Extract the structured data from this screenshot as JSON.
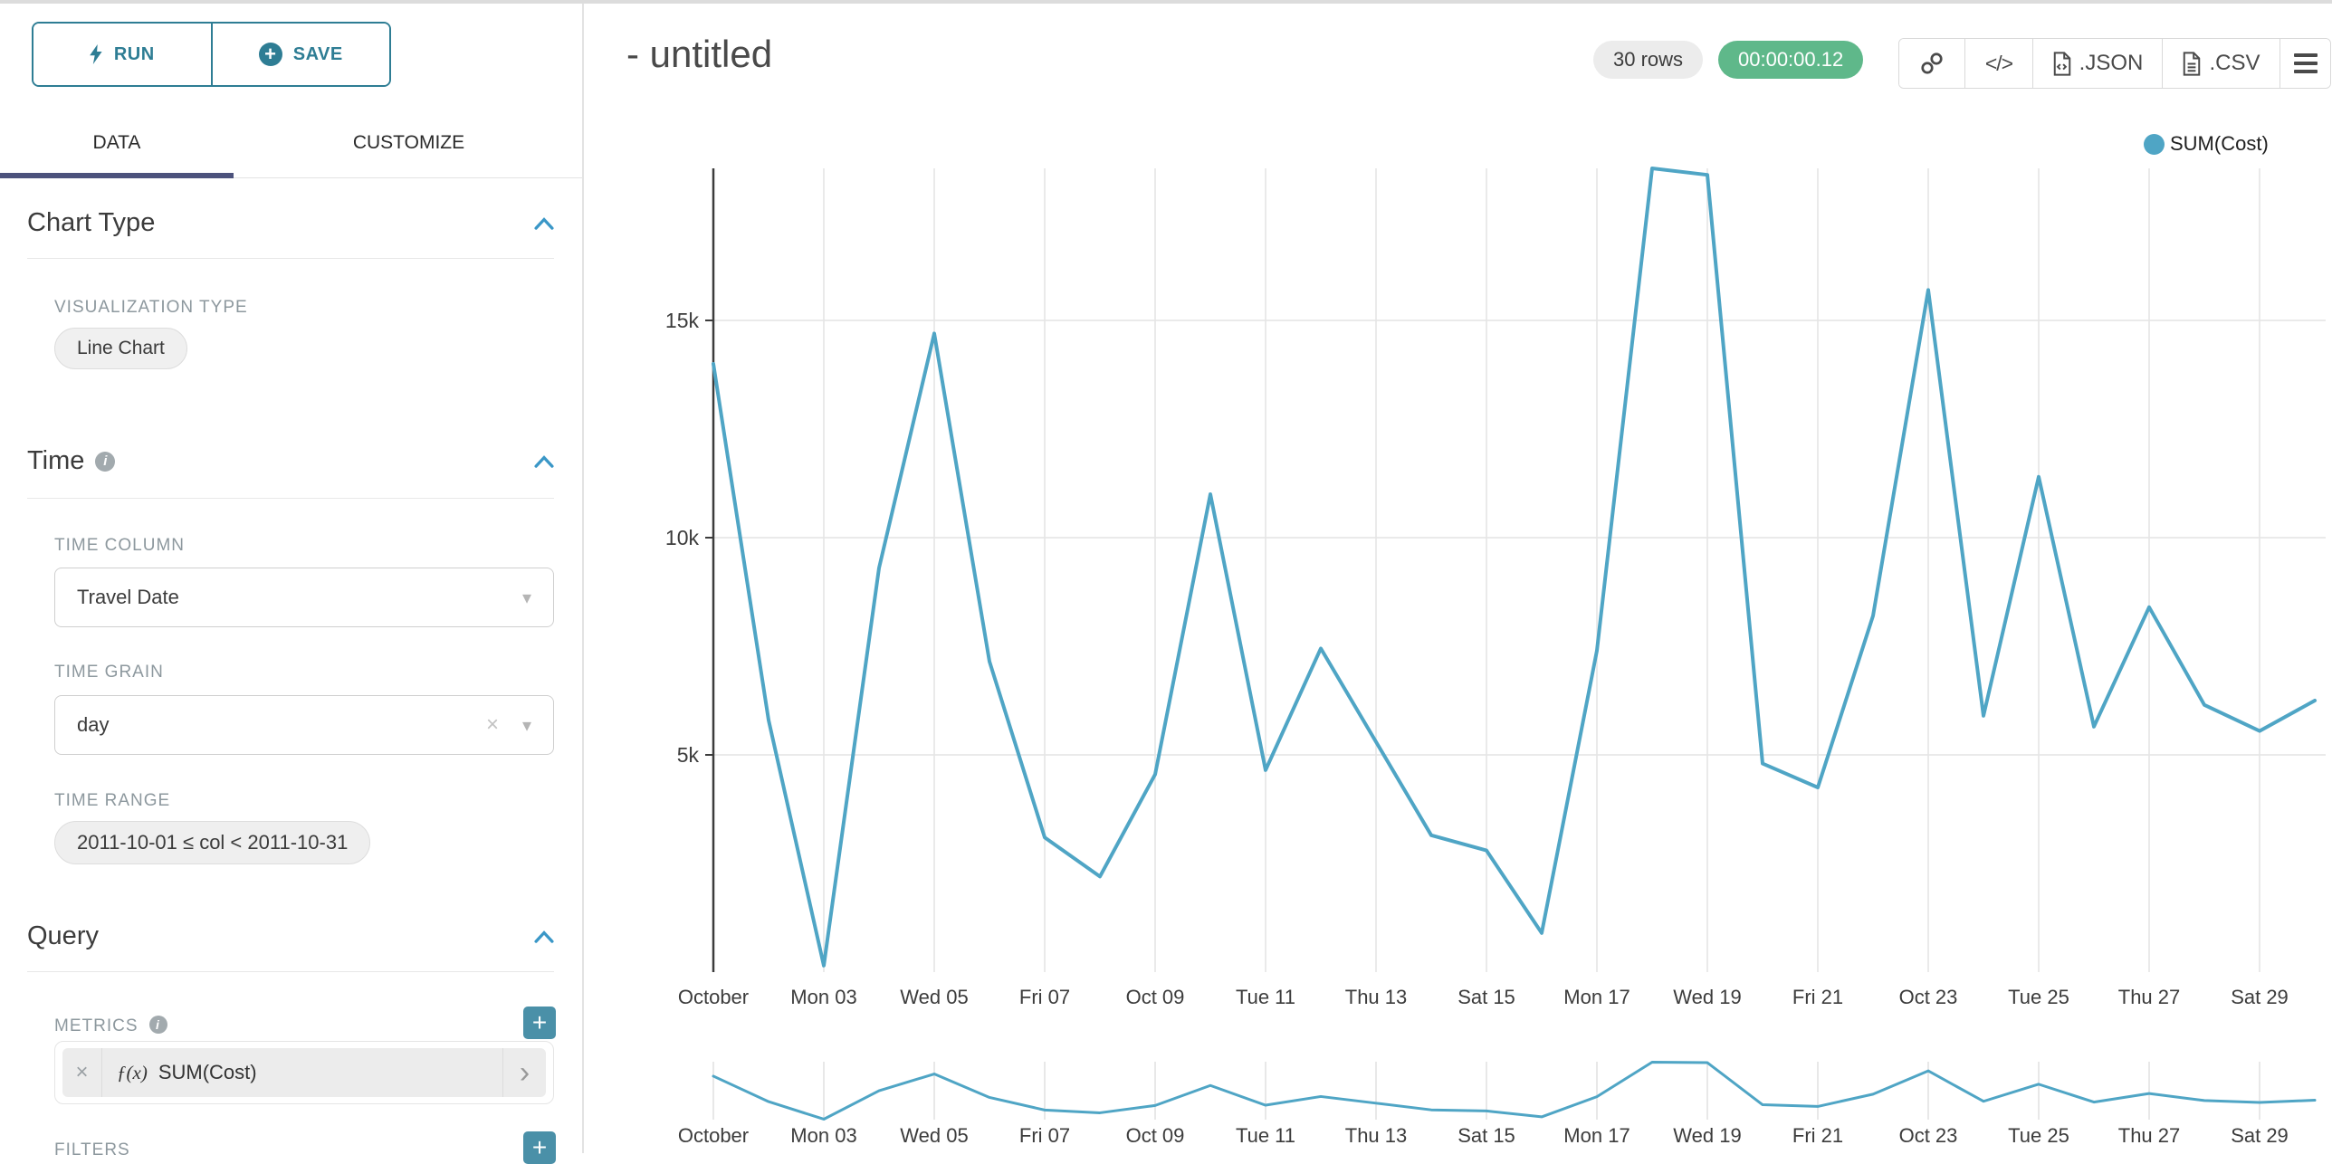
{
  "colors": {
    "accent": "#2e7d94",
    "line": "#4fa5c5",
    "tab_underline": "#4c527c",
    "timer_green": "#5fb88a",
    "add_button": "#4a90a8",
    "grid": "#e4e4e4",
    "axis": "#3c3c3c"
  },
  "icons": {
    "info": "i",
    "plus": "+",
    "clear": "×",
    "caret_down": "▾",
    "chevron_right": "›",
    "code": "</>"
  },
  "sidebar": {
    "run_label": "RUN",
    "save_label": "SAVE",
    "tab_data": "DATA",
    "tab_customize": "CUSTOMIZE",
    "chart_type": {
      "title": "Chart Type",
      "viz_label": "VISUALIZATION TYPE",
      "viz_value": "Line Chart"
    },
    "time": {
      "title": "Time",
      "col_label": "TIME COLUMN",
      "col_value": "Travel Date",
      "grain_label": "TIME GRAIN",
      "grain_value": "day",
      "range_label": "TIME RANGE",
      "range_value": "2011-10-01 ≤ col < 2011-10-31"
    },
    "query": {
      "title": "Query",
      "metrics_label": "METRICS",
      "metric_fx": "ƒ(x)",
      "metric_value": "SUM(Cost)",
      "filters_label": "FILTERS"
    }
  },
  "header": {
    "title": "- untitled",
    "rows_badge": "30 rows",
    "timer_badge": "00:00:00.12",
    "json_label": ".JSON",
    "csv_label": ".CSV"
  },
  "legend": {
    "label": "SUM(Cost)"
  },
  "chart_data": {
    "type": "line",
    "title": "- untitled",
    "legend_position": "top-right",
    "grid": true,
    "focus_chart": true,
    "line_color": "#4fa5c5",
    "xlabel": "",
    "ylabel": "",
    "ylim": [
      0,
      18500
    ],
    "y_ticks": [
      5000,
      10000,
      15000
    ],
    "y_tick_labels": [
      "5k",
      "10k",
      "15k"
    ],
    "x_tick_labels": [
      "October",
      "Mon 03",
      "Wed 05",
      "Fri 07",
      "Oct 09",
      "Tue 11",
      "Thu 13",
      "Sat 15",
      "Mon 17",
      "Wed 19",
      "Fri 21",
      "Oct 23",
      "Tue 25",
      "Thu 27",
      "Sat 29"
    ],
    "dates": [
      "2011-10-01",
      "2011-10-02",
      "2011-10-03",
      "2011-10-04",
      "2011-10-05",
      "2011-10-06",
      "2011-10-07",
      "2011-10-08",
      "2011-10-09",
      "2011-10-10",
      "2011-10-11",
      "2011-10-12",
      "2011-10-13",
      "2011-10-14",
      "2011-10-15",
      "2011-10-16",
      "2011-10-17",
      "2011-10-18",
      "2011-10-19",
      "2011-10-20",
      "2011-10-21",
      "2011-10-22",
      "2011-10-23",
      "2011-10-24",
      "2011-10-25",
      "2011-10-26",
      "2011-10-27",
      "2011-10-28",
      "2011-10-29",
      "2011-10-30"
    ],
    "series": [
      {
        "name": "SUM(Cost)",
        "values": [
          14000,
          5800,
          150,
          9300,
          14700,
          7150,
          3100,
          2200,
          4550,
          11000,
          4650,
          7450,
          5300,
          3150,
          2800,
          900,
          7400,
          18500,
          18350,
          4800,
          4250,
          8200,
          15700,
          5900,
          11400,
          5650,
          8400,
          6150,
          5550,
          6250
        ]
      }
    ]
  }
}
